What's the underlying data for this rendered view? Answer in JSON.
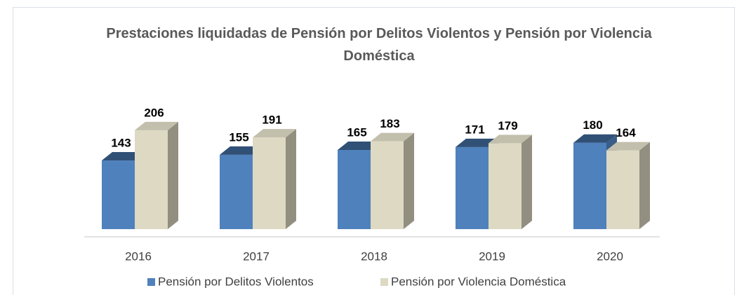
{
  "chart_data": {
    "type": "bar3d",
    "title": "Prestaciones liquidadas de Pensión por Delitos Violentos y Pensión por Violencia Doméstica",
    "categories": [
      "2016",
      "2017",
      "2018",
      "2019",
      "2020"
    ],
    "series": [
      {
        "name": "Pensión por Delitos Violentos",
        "color": "#4f81bd",
        "values": [
          143,
          155,
          165,
          171,
          180
        ]
      },
      {
        "name": "Pensión por Violencia Doméstica",
        "color": "#ddd9c3",
        "values": [
          206,
          191,
          183,
          179,
          164
        ]
      }
    ]
  }
}
